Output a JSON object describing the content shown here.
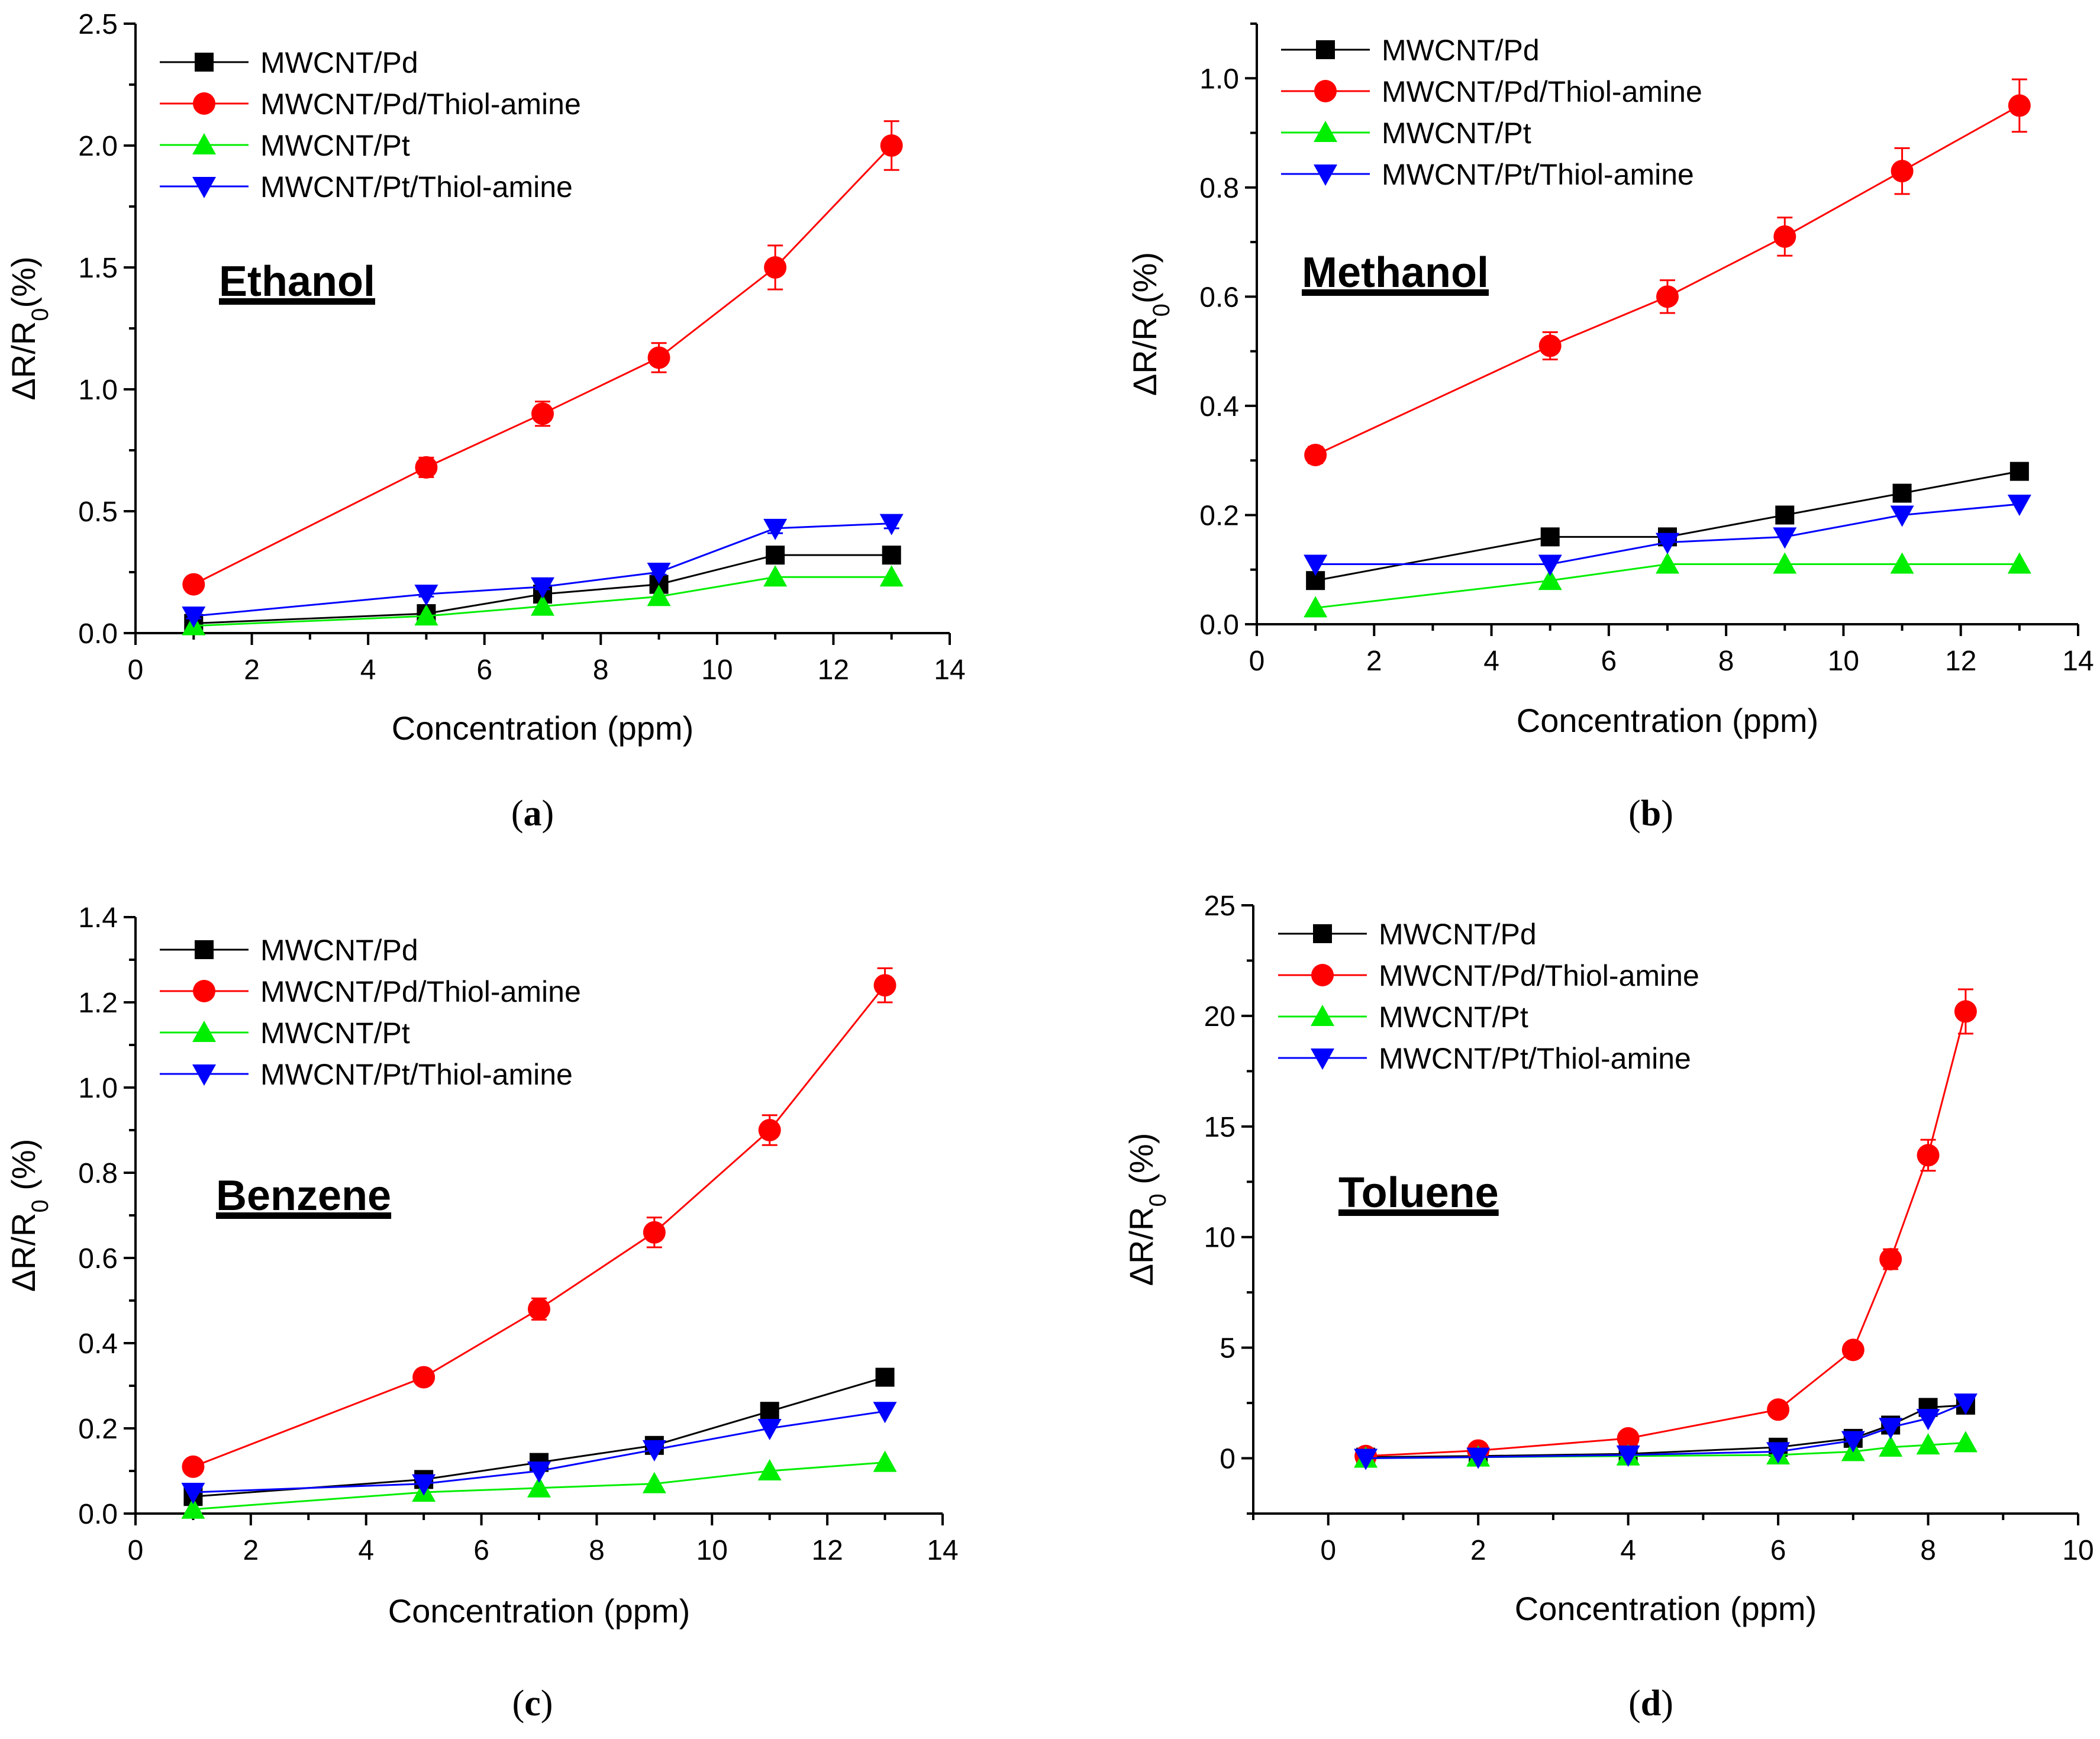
{
  "figure": {
    "captions": [
      {
        "open": "(",
        "letter": "a",
        "close": ")"
      },
      {
        "open": "(",
        "letter": "b",
        "close": ")"
      },
      {
        "open": "(",
        "letter": "c",
        "close": ")"
      },
      {
        "open": "(",
        "letter": "d",
        "close": ")"
      }
    ]
  },
  "chart_data": [
    {
      "type": "line",
      "annotation": "Ethanol",
      "xlabel": "Concentration (ppm)",
      "ylabel": {
        "delta": "ΔR/R",
        "sub": "0",
        "suffix": "(%)"
      },
      "xlim": [
        0,
        14
      ],
      "ylim": [
        0,
        2.5
      ],
      "xticks": [
        0,
        2,
        4,
        6,
        8,
        10,
        12,
        14
      ],
      "yticks": [
        0.0,
        0.5,
        1.0,
        1.5,
        2.0,
        2.5
      ],
      "yticks_decimals": 1,
      "legend_position": "top-left",
      "series": [
        {
          "name": "MWCNT/Pd",
          "color": "#000000",
          "marker": "square",
          "x": [
            1,
            5,
            7,
            9,
            11,
            13
          ],
          "y": [
            0.04,
            0.08,
            0.16,
            0.2,
            0.32,
            0.32
          ],
          "err": [
            0.01,
            0.01,
            0.02,
            0.02,
            0.02,
            0.02
          ]
        },
        {
          "name": "MWCNT/Pd/Thiol-amine",
          "color": "#ff0000",
          "marker": "circle",
          "x": [
            1,
            5,
            7,
            9,
            11,
            13
          ],
          "y": [
            0.2,
            0.68,
            0.9,
            1.13,
            1.5,
            2.0
          ],
          "err": [
            0.02,
            0.04,
            0.05,
            0.06,
            0.09,
            0.1
          ]
        },
        {
          "name": "MWCNT/Pt",
          "color": "#00ee00",
          "marker": "triangle-up",
          "x": [
            1,
            5,
            7,
            9,
            11,
            13
          ],
          "y": [
            0.03,
            0.07,
            0.11,
            0.15,
            0.23,
            0.23
          ],
          "err": [
            0,
            0,
            0,
            0,
            0,
            0
          ]
        },
        {
          "name": "MWCNT/Pt/Thiol-amine",
          "color": "#0000ff",
          "marker": "triangle-down",
          "x": [
            1,
            5,
            7,
            9,
            11,
            13
          ],
          "y": [
            0.07,
            0.16,
            0.19,
            0.25,
            0.43,
            0.45
          ],
          "err": [
            0.01,
            0.01,
            0.01,
            0.01,
            0.02,
            0.02
          ]
        }
      ]
    },
    {
      "type": "line",
      "annotation": "Methanol",
      "xlabel": "Concentration (ppm)",
      "ylabel": {
        "delta": "ΔR/R",
        "sub": "0",
        "suffix": "(%)"
      },
      "xlim": [
        0,
        14
      ],
      "ylim": [
        0,
        1.1
      ],
      "xticks": [
        0,
        2,
        4,
        6,
        8,
        10,
        12,
        14
      ],
      "yticks": [
        0.0,
        0.2,
        0.4,
        0.6,
        0.8,
        1.0
      ],
      "yticks_decimals": 1,
      "legend_position": "top-left",
      "series": [
        {
          "name": "MWCNT/Pd",
          "color": "#000000",
          "marker": "square",
          "x": [
            1,
            5,
            7,
            9,
            11,
            13
          ],
          "y": [
            0.08,
            0.16,
            0.16,
            0.2,
            0.24,
            0.28
          ],
          "err": [
            0.005,
            0.005,
            0.005,
            0.005,
            0.008,
            0.012
          ]
        },
        {
          "name": "MWCNT/Pd/Thiol-amine",
          "color": "#ff0000",
          "marker": "circle",
          "x": [
            1,
            5,
            7,
            9,
            11,
            13
          ],
          "y": [
            0.31,
            0.51,
            0.6,
            0.71,
            0.83,
            0.95
          ],
          "err": [
            0.015,
            0.025,
            0.03,
            0.035,
            0.042,
            0.048
          ]
        },
        {
          "name": "MWCNT/Pt",
          "color": "#00ee00",
          "marker": "triangle-up",
          "x": [
            1,
            5,
            7,
            9,
            11,
            13
          ],
          "y": [
            0.03,
            0.08,
            0.11,
            0.11,
            0.11,
            0.11
          ],
          "err": [
            0,
            0,
            0,
            0,
            0,
            0
          ]
        },
        {
          "name": "MWCNT/Pt/Thiol-amine",
          "color": "#0000ff",
          "marker": "triangle-down",
          "x": [
            1,
            5,
            7,
            9,
            11,
            13
          ],
          "y": [
            0.11,
            0.11,
            0.15,
            0.16,
            0.2,
            0.22
          ],
          "err": [
            0,
            0,
            0,
            0,
            0,
            0
          ]
        }
      ]
    },
    {
      "type": "line",
      "annotation": "Benzene",
      "xlabel": "Concentration (ppm)",
      "ylabel": {
        "delta": "ΔR/R",
        "sub": "0",
        "suffix": " (%)"
      },
      "xlim": [
        0,
        14
      ],
      "ylim": [
        0,
        1.4
      ],
      "xticks": [
        0,
        2,
        4,
        6,
        8,
        10,
        12,
        14
      ],
      "yticks": [
        0.0,
        0.2,
        0.4,
        0.6,
        0.8,
        1.0,
        1.2,
        1.4
      ],
      "yticks_decimals": 1,
      "legend_position": "top-left",
      "series": [
        {
          "name": "MWCNT/Pd",
          "color": "#000000",
          "marker": "square",
          "x": [
            1,
            5,
            7,
            9,
            11,
            13
          ],
          "y": [
            0.04,
            0.08,
            0.12,
            0.16,
            0.24,
            0.32
          ],
          "err": [
            0.005,
            0.005,
            0.008,
            0.008,
            0.01,
            0.012
          ]
        },
        {
          "name": "MWCNT/Pd/Thiol-amine",
          "color": "#ff0000",
          "marker": "circle",
          "x": [
            1,
            5,
            7,
            9,
            11,
            13
          ],
          "y": [
            0.11,
            0.32,
            0.48,
            0.66,
            0.9,
            1.24
          ],
          "err": [
            0.01,
            0.015,
            0.025,
            0.035,
            0.035,
            0.04
          ]
        },
        {
          "name": "MWCNT/Pt",
          "color": "#00ee00",
          "marker": "triangle-up",
          "x": [
            1,
            5,
            7,
            9,
            11,
            13
          ],
          "y": [
            0.01,
            0.05,
            0.06,
            0.07,
            0.1,
            0.12
          ],
          "err": [
            0,
            0,
            0,
            0,
            0,
            0
          ]
        },
        {
          "name": "MWCNT/Pt/Thiol-amine",
          "color": "#0000ff",
          "marker": "triangle-down",
          "x": [
            1,
            5,
            7,
            9,
            11,
            13
          ],
          "y": [
            0.05,
            0.07,
            0.1,
            0.15,
            0.2,
            0.24
          ],
          "err": [
            0,
            0,
            0,
            0,
            0,
            0
          ]
        }
      ]
    },
    {
      "type": "line",
      "annotation": "Toluene",
      "xlabel": "Concentration (ppm)",
      "ylabel": {
        "delta": "ΔR/R",
        "sub": "0",
        "suffix": " (%)"
      },
      "xlim": [
        -1,
        10
      ],
      "ylim": [
        -2.5,
        25
      ],
      "xticks": [
        0,
        2,
        4,
        6,
        8,
        10
      ],
      "yticks": [
        0,
        5,
        10,
        15,
        20,
        25
      ],
      "yticks_decimals": 0,
      "legend_position": "top-left",
      "series": [
        {
          "name": "MWCNT/Pd",
          "color": "#000000",
          "marker": "square",
          "x": [
            0.5,
            2,
            4,
            6,
            7,
            7.5,
            8,
            8.5
          ],
          "y": [
            0.05,
            0.1,
            0.2,
            0.5,
            0.9,
            1.5,
            2.3,
            2.4
          ],
          "err": [
            0,
            0,
            0,
            0,
            0,
            0,
            0,
            0
          ]
        },
        {
          "name": "MWCNT/Pd/Thiol-amine",
          "color": "#ff0000",
          "marker": "circle",
          "x": [
            0.5,
            2,
            4,
            6,
            7,
            7.5,
            8,
            8.5
          ],
          "y": [
            0.1,
            0.35,
            0.9,
            2.2,
            4.9,
            9.0,
            13.7,
            20.2
          ],
          "err": [
            0,
            0,
            0.05,
            0.1,
            0.2,
            0.45,
            0.7,
            1.0
          ]
        },
        {
          "name": "MWCNT/Pt",
          "color": "#00ee00",
          "marker": "triangle-up",
          "x": [
            0.5,
            2,
            4,
            6,
            7,
            7.5,
            8,
            8.5
          ],
          "y": [
            0.0,
            0.05,
            0.1,
            0.15,
            0.3,
            0.5,
            0.6,
            0.7
          ],
          "err": [
            0,
            0,
            0,
            0,
            0,
            0,
            0,
            0
          ]
        },
        {
          "name": "MWCNT/Pt/Thiol-amine",
          "color": "#0000ff",
          "marker": "triangle-down",
          "x": [
            0.5,
            2,
            4,
            6,
            7,
            7.5,
            8,
            8.5
          ],
          "y": [
            0.0,
            0.05,
            0.15,
            0.3,
            0.8,
            1.4,
            1.8,
            2.5
          ],
          "err": [
            0,
            0,
            0,
            0,
            0,
            0,
            0,
            0
          ]
        }
      ]
    }
  ]
}
